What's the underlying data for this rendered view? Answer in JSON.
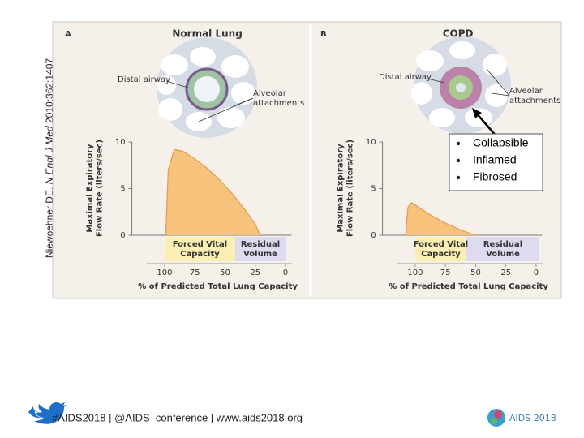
{
  "citation": {
    "author": "Niewoehner DE.",
    "journal": "N Engl J Med",
    "ref": "2010;362:1407"
  },
  "chart_data": [
    {
      "type": "area",
      "panel": "A",
      "title": "Normal Lung",
      "illustration_labels": {
        "airway": "Distal airway",
        "attachments": [
          "Alveolar",
          "attachments"
        ]
      },
      "y_label": [
        "Maximal Expiratory",
        "Flow Rate (liters/sec)"
      ],
      "x_label": "% of Predicted Total Lung Capacity",
      "regions": {
        "fvc": [
          "Forced Vital",
          "Capacity"
        ],
        "rv": [
          "Residual",
          "Volume"
        ]
      },
      "x": [
        99,
        97,
        92,
        85,
        75,
        65,
        55,
        45,
        35,
        25,
        21
      ],
      "values": [
        0,
        7,
        9.2,
        9,
        8.2,
        7.2,
        6,
        4.6,
        3,
        1.2,
        0
      ],
      "color": "#f6c27c",
      "xlim": [
        115,
        -5
      ],
      "xticks": [
        100,
        75,
        50,
        25,
        0
      ],
      "ylim": [
        0,
        10
      ],
      "yticks": [
        0,
        5,
        10
      ]
    },
    {
      "type": "area",
      "panel": "B",
      "title": "COPD",
      "illustration_labels": {
        "airway": "Distal airway",
        "attachments": [
          "Alveolar",
          "attachments"
        ]
      },
      "y_label": [
        "Maximal Expiratory",
        "Flow Rate (liters/sec)"
      ],
      "x_label": "% of Predicted Total Lung Capacity",
      "regions": {
        "fvc": [
          "Forced Vital",
          "Capacity"
        ],
        "rv": [
          "Residual",
          "Volume"
        ]
      },
      "x": [
        108,
        106,
        103,
        95,
        85,
        75,
        65,
        55,
        48
      ],
      "values": [
        0,
        3,
        3.5,
        2.8,
        2,
        1.3,
        0.7,
        0.2,
        0
      ],
      "color": "#f6c27c",
      "xlim": [
        115,
        -5
      ],
      "xticks": [
        100,
        75,
        50,
        25,
        0
      ],
      "ylim": [
        0,
        10
      ],
      "yticks": [
        0,
        5,
        10
      ]
    }
  ],
  "bullets": [
    "Collapsible",
    "Inflamed",
    "Fibrosed"
  ],
  "footer": "#AIDS2018 | @AIDS_conference | www.aids2018.org",
  "logo": "AIDS 2018"
}
